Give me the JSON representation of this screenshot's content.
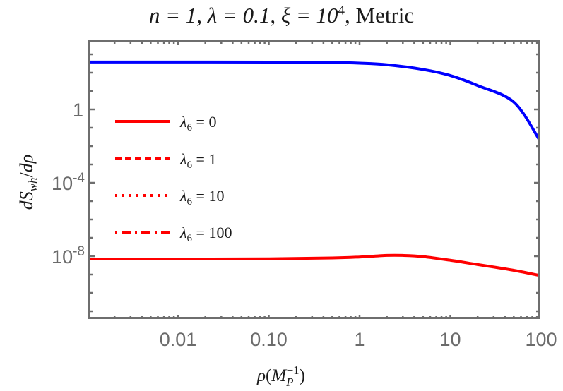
{
  "chart_data": {
    "type": "line",
    "title": "n = 1,  λ = 0.1,  ξ = 10^4,  Metric",
    "title_parts": {
      "n": "n = 1,",
      "lambda": "λ = 0.1,",
      "xi": "ξ = 10",
      "xi_exp": "4",
      "label": ",  Metric"
    },
    "xlabel": "ρ(M_P^-1)",
    "ylabel": "dS_wh/dρ",
    "xscale": "log",
    "yscale": "log",
    "xlim": [
      0.001,
      100
    ],
    "ylim": [
      1e-11,
      20000.0
    ],
    "x_ticks": [
      {
        "value": 0.01,
        "label": "0.01"
      },
      {
        "value": 0.1,
        "label": "0.10"
      },
      {
        "value": 1,
        "label": "1"
      },
      {
        "value": 10,
        "label": "10"
      },
      {
        "value": 100,
        "label": "100"
      }
    ],
    "y_ticks": [
      {
        "value": 1,
        "label": "1"
      },
      {
        "value": 0.0001,
        "label": "10",
        "exp": "-4"
      },
      {
        "value": 1e-08,
        "label": "10",
        "exp": "-8"
      }
    ],
    "grid": false,
    "legend_position": "inside-left",
    "legend": [
      {
        "label": "λ6 = 0",
        "sub": "6",
        "value": "0",
        "color": "#ff0000",
        "style": "solid"
      },
      {
        "label": "λ6 = 1",
        "sub": "6",
        "value": "1",
        "color": "#ff0000",
        "style": "dashed"
      },
      {
        "label": "λ6 = 10",
        "sub": "6",
        "value": "10",
        "color": "#ff0000",
        "style": "dotted"
      },
      {
        "label": "λ6 = 100",
        "sub": "6",
        "value": "100",
        "color": "#ff0000",
        "style": "dashdot"
      }
    ],
    "series": [
      {
        "name": "blue curve",
        "color": "#0000ff",
        "x": [
          0.001,
          0.01,
          0.1,
          0.5,
          1,
          2,
          5,
          10,
          20,
          50,
          100
        ],
        "y": [
          380,
          380,
          378,
          360,
          330,
          270,
          150,
          70,
          20,
          2.5,
          0.024
        ]
      },
      {
        "name": "λ6 = 0 (red, overlapping all λ6)",
        "color": "#ff0000",
        "x": [
          0.001,
          0.01,
          0.1,
          0.5,
          1,
          2,
          3,
          5,
          10,
          20,
          50,
          100
        ],
        "y": [
          7e-09,
          7e-09,
          7.2e-09,
          8e-09,
          9e-09,
          1.1e-08,
          1.1e-08,
          9.5e-09,
          6e-09,
          3.5e-09,
          1.7e-09,
          9e-10
        ]
      }
    ]
  },
  "colors": {
    "frame": "#6e6e6e",
    "blue": "#0000ff",
    "red": "#ff0000",
    "ticklabel": "#6b6b6b"
  }
}
